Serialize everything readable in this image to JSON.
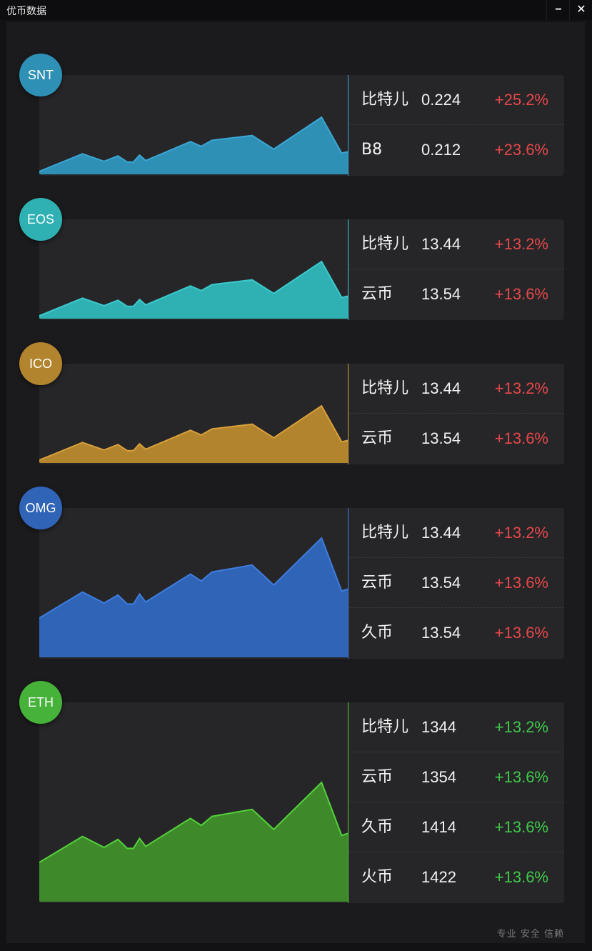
{
  "window": {
    "title": "优币数据",
    "minimize_glyph": "−",
    "close_glyph": "✕"
  },
  "cards": [
    {
      "symbol": "SNT",
      "color": "#2f90b6",
      "line_color": "#3aa7d6",
      "rows": [
        {
          "name": "比特儿",
          "price": "0.224",
          "change": "+25.2%",
          "trend": "up-red"
        },
        {
          "name": "B8",
          "price": "0.212",
          "change": "+23.6%",
          "trend": "up-red"
        }
      ]
    },
    {
      "symbol": "EOS",
      "color": "#2fb1b4",
      "line_color": "#3ccacc",
      "rows": [
        {
          "name": "比特儿",
          "price": "13.44",
          "change": "+13.2%",
          "trend": "up-red"
        },
        {
          "name": "云币",
          "price": "13.54",
          "change": "+13.6%",
          "trend": "up-red"
        }
      ]
    },
    {
      "symbol": "ICO",
      "color": "#b3842e",
      "line_color": "#d9a03a",
      "rows": [
        {
          "name": "比特儿",
          "price": "13.44",
          "change": "+13.2%",
          "trend": "up-red"
        },
        {
          "name": "云币",
          "price": "13.54",
          "change": "+13.6%",
          "trend": "up-red"
        }
      ]
    },
    {
      "symbol": "OMG",
      "color": "#2f64b6",
      "line_color": "#3e7ee0",
      "rows": [
        {
          "name": "比特儿",
          "price": "13.44",
          "change": "+13.2%",
          "trend": "up-red"
        },
        {
          "name": "云币",
          "price": "13.54",
          "change": "+13.6%",
          "trend": "up-red"
        },
        {
          "name": "久币",
          "price": "13.54",
          "change": "+13.6%",
          "trend": "up-red"
        }
      ]
    },
    {
      "symbol": "ETH",
      "color": "#3e8a2b",
      "line_color": "#55d13a",
      "badge_color": "#46b23a",
      "rows": [
        {
          "name": "比特儿",
          "price": "1344",
          "change": "+13.2%",
          "trend": "up-green"
        },
        {
          "name": "云币",
          "price": "1354",
          "change": "+13.6%",
          "trend": "up-green"
        },
        {
          "name": "久币",
          "price": "1414",
          "change": "+13.6%",
          "trend": "up-green"
        },
        {
          "name": "火币",
          "price": "1422",
          "change": "+13.6%",
          "trend": "up-green"
        }
      ]
    }
  ],
  "footer": {
    "slogan": "专业 安全 信赖"
  }
}
